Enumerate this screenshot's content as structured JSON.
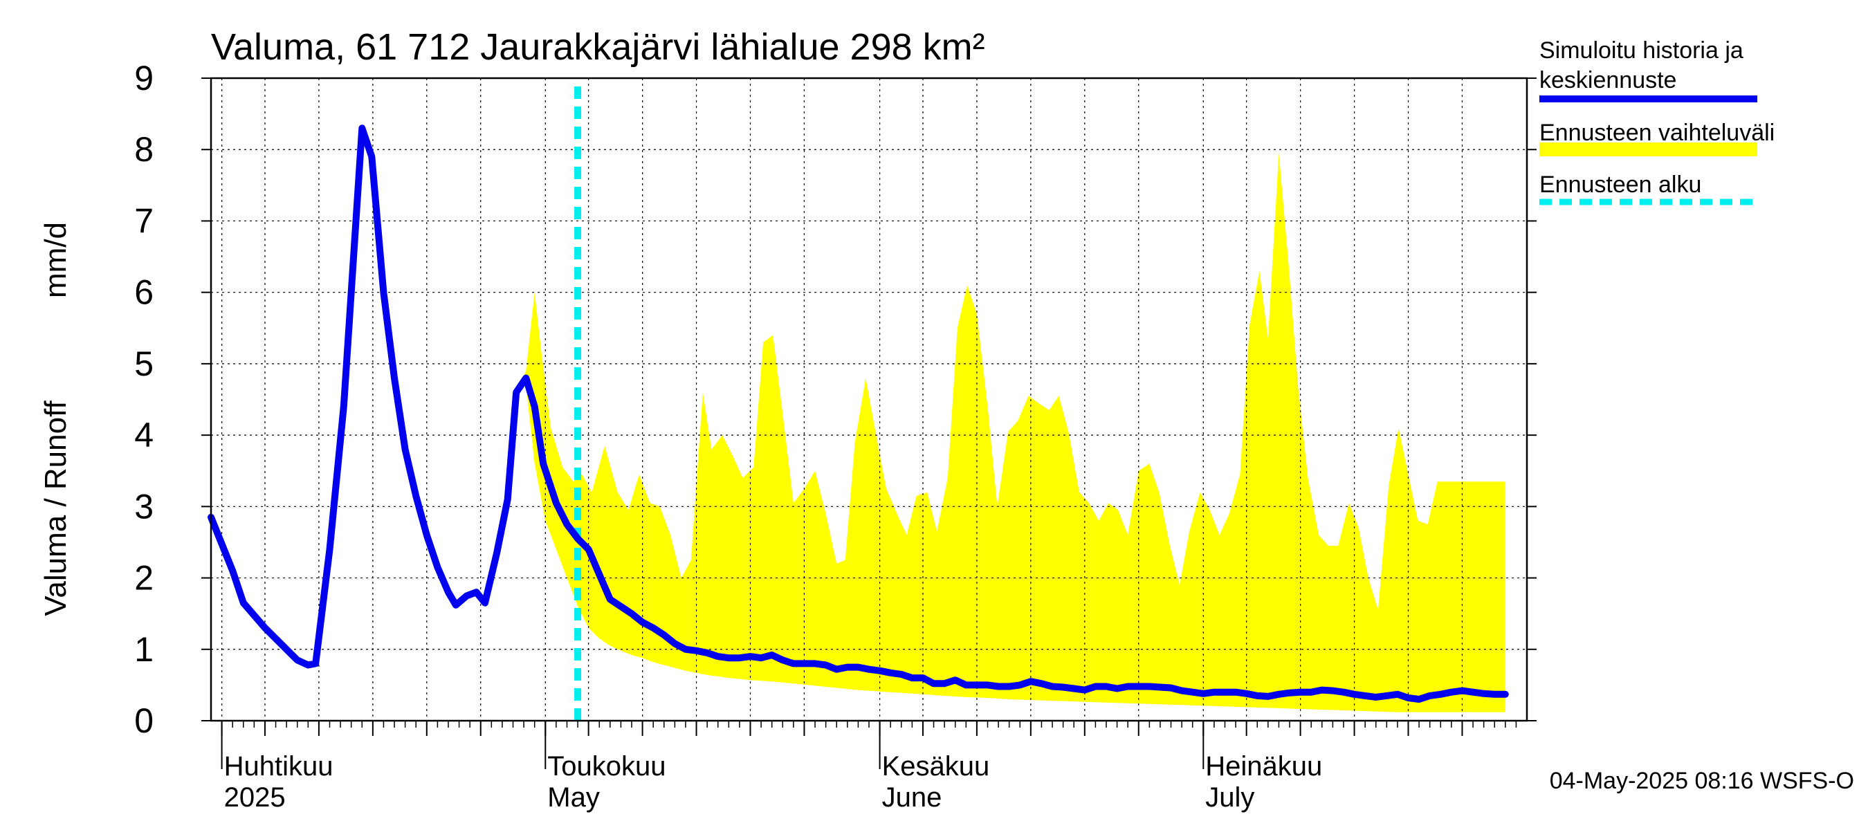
{
  "chart_data": {
    "type": "area",
    "title": "Valuma, 61 712 Jaurakkajärvi lähialue 298 km²",
    "ylabel_left": "Valuma / Runoff",
    "ylabel_right": "mm/d",
    "ylim": [
      0,
      9
    ],
    "yticks": [
      0,
      1,
      2,
      3,
      4,
      5,
      6,
      7,
      8,
      9
    ],
    "x_start": "2025-03-31",
    "x_end": "2025-07-31",
    "forecast_start": "2025-05-04",
    "months": [
      {
        "date": "2025-04-01",
        "label_fi": "Huhtikuu",
        "label_en": "2025"
      },
      {
        "date": "2025-05-01",
        "label_fi": "Toukokuu",
        "label_en": "May"
      },
      {
        "date": "2025-06-01",
        "label_fi": "Kesäkuu",
        "label_en": "June"
      },
      {
        "date": "2025-07-01",
        "label_fi": "Heinäkuu",
        "label_en": "July"
      }
    ],
    "legend": {
      "history": "Simuloitu historia ja keskiennuste",
      "range": "Ennusteen vaihteluväli",
      "start": "Ennusteen alku"
    },
    "footer": "04-May-2025 08:16 WSFS-O",
    "colors": {
      "history": "#0000ee",
      "range": "#ffff00",
      "start": "#00eeee",
      "grid": "#000000"
    },
    "series": [
      {
        "name": "Simuloitu historia ja keskiennuste",
        "points": [
          [
            0,
            2.85
          ],
          [
            2,
            2.1
          ],
          [
            3,
            1.65
          ],
          [
            5,
            1.3
          ],
          [
            7,
            1.0
          ],
          [
            8,
            0.85
          ],
          [
            9,
            0.78
          ],
          [
            9.7,
            0.8
          ],
          [
            11,
            2.4
          ],
          [
            12.3,
            4.4
          ],
          [
            14,
            8.3
          ],
          [
            14.9,
            7.9
          ],
          [
            16,
            6.0
          ],
          [
            17,
            4.8
          ],
          [
            18,
            3.8
          ],
          [
            19,
            3.15
          ],
          [
            20,
            2.6
          ],
          [
            21,
            2.15
          ],
          [
            22,
            1.8
          ],
          [
            22.7,
            1.62
          ],
          [
            23.7,
            1.75
          ],
          [
            24.6,
            1.8
          ],
          [
            25.4,
            1.65
          ],
          [
            26.5,
            2.35
          ],
          [
            27.5,
            3.1
          ],
          [
            28.3,
            4.6
          ],
          [
            29.2,
            4.8
          ],
          [
            30,
            4.4
          ],
          [
            30.8,
            3.6
          ],
          [
            32,
            3.05
          ],
          [
            33,
            2.75
          ],
          [
            34,
            2.55
          ],
          [
            35,
            2.4
          ],
          [
            36,
            2.05
          ],
          [
            37,
            1.7
          ],
          [
            38,
            1.6
          ],
          [
            39,
            1.5
          ],
          [
            40,
            1.38
          ],
          [
            41,
            1.3
          ],
          [
            42,
            1.2
          ],
          [
            43,
            1.08
          ],
          [
            44,
            1.0
          ],
          [
            45,
            0.98
          ],
          [
            46,
            0.95
          ],
          [
            47,
            0.9
          ],
          [
            48,
            0.88
          ],
          [
            49,
            0.88
          ],
          [
            50,
            0.9
          ],
          [
            51,
            0.88
          ],
          [
            52,
            0.92
          ],
          [
            53,
            0.85
          ],
          [
            54,
            0.8
          ],
          [
            55,
            0.8
          ],
          [
            56,
            0.8
          ],
          [
            57,
            0.78
          ],
          [
            58,
            0.72
          ],
          [
            59,
            0.75
          ],
          [
            60,
            0.75
          ],
          [
            61,
            0.72
          ],
          [
            62,
            0.7
          ],
          [
            63,
            0.67
          ],
          [
            64,
            0.65
          ],
          [
            65,
            0.6
          ],
          [
            66,
            0.6
          ],
          [
            67,
            0.52
          ],
          [
            68,
            0.52
          ],
          [
            69,
            0.57
          ],
          [
            70,
            0.5
          ],
          [
            71,
            0.5
          ],
          [
            72,
            0.5
          ],
          [
            73,
            0.48
          ],
          [
            74,
            0.48
          ],
          [
            75,
            0.5
          ],
          [
            76,
            0.55
          ],
          [
            77,
            0.52
          ],
          [
            78,
            0.48
          ],
          [
            79,
            0.47
          ],
          [
            80,
            0.45
          ],
          [
            81,
            0.43
          ],
          [
            82,
            0.48
          ],
          [
            83,
            0.48
          ],
          [
            84,
            0.45
          ],
          [
            85,
            0.48
          ],
          [
            86,
            0.48
          ],
          [
            87,
            0.48
          ],
          [
            88,
            0.47
          ],
          [
            89,
            0.46
          ],
          [
            90,
            0.42
          ],
          [
            91,
            0.4
          ],
          [
            92,
            0.38
          ],
          [
            93,
            0.4
          ],
          [
            94,
            0.4
          ],
          [
            95,
            0.4
          ],
          [
            96,
            0.38
          ],
          [
            97,
            0.35
          ],
          [
            98,
            0.34
          ],
          [
            99,
            0.37
          ],
          [
            100,
            0.39
          ],
          [
            101,
            0.4
          ],
          [
            102,
            0.4
          ],
          [
            103,
            0.43
          ],
          [
            104,
            0.42
          ],
          [
            105,
            0.4
          ],
          [
            106,
            0.37
          ],
          [
            107,
            0.35
          ],
          [
            108,
            0.33
          ],
          [
            109,
            0.35
          ],
          [
            110,
            0.37
          ],
          [
            111,
            0.32
          ],
          [
            112,
            0.3
          ],
          [
            113,
            0.35
          ],
          [
            114,
            0.37
          ],
          [
            115,
            0.4
          ],
          [
            116,
            0.42
          ],
          [
            117,
            0.4
          ],
          [
            118,
            0.38
          ],
          [
            119,
            0.37
          ],
          [
            120,
            0.37
          ]
        ]
      },
      {
        "name": "Ennusteen vaihteluväli",
        "upper": [
          [
            28.3,
            4.6
          ],
          [
            29.2,
            4.9
          ],
          [
            30,
            6.0
          ],
          [
            30.6,
            5.2
          ],
          [
            31.5,
            4.1
          ],
          [
            32.6,
            3.55
          ],
          [
            33.6,
            3.35
          ],
          [
            34.4,
            3.45
          ],
          [
            35.3,
            3.2
          ],
          [
            36.5,
            3.85
          ],
          [
            37.7,
            3.2
          ],
          [
            38.7,
            2.95
          ],
          [
            39.7,
            3.45
          ],
          [
            40.7,
            3.05
          ],
          [
            41.6,
            3.0
          ],
          [
            42.6,
            2.6
          ],
          [
            43.6,
            2.0
          ],
          [
            44.5,
            2.25
          ],
          [
            45.6,
            4.6
          ],
          [
            46.4,
            3.8
          ],
          [
            47.4,
            4.0
          ],
          [
            48.4,
            3.7
          ],
          [
            49.3,
            3.4
          ],
          [
            50.3,
            3.55
          ],
          [
            51.2,
            5.3
          ],
          [
            52.1,
            5.4
          ],
          [
            53,
            4.3
          ],
          [
            54,
            3.05
          ],
          [
            55,
            3.25
          ],
          [
            56,
            3.5
          ],
          [
            57,
            2.9
          ],
          [
            58,
            2.2
          ],
          [
            58.8,
            2.25
          ],
          [
            59.7,
            3.9
          ],
          [
            60.7,
            4.8
          ],
          [
            61.6,
            4.05
          ],
          [
            62.6,
            3.25
          ],
          [
            63.6,
            2.9
          ],
          [
            64.5,
            2.6
          ],
          [
            65.4,
            3.15
          ],
          [
            66.4,
            3.2
          ],
          [
            67.3,
            2.65
          ],
          [
            68.3,
            3.4
          ],
          [
            69.2,
            5.5
          ],
          [
            70.1,
            6.1
          ],
          [
            71,
            5.7
          ],
          [
            72,
            4.4
          ],
          [
            72.9,
            3.0
          ],
          [
            73.9,
            4.05
          ],
          [
            74.8,
            4.2
          ],
          [
            75.8,
            4.55
          ],
          [
            76.7,
            4.45
          ],
          [
            77.7,
            4.35
          ],
          [
            78.6,
            4.55
          ],
          [
            79.5,
            4.05
          ],
          [
            80.5,
            3.2
          ],
          [
            81.4,
            3.05
          ],
          [
            82.3,
            2.8
          ],
          [
            83.2,
            3.05
          ],
          [
            84.1,
            2.95
          ],
          [
            85,
            2.6
          ],
          [
            86,
            3.5
          ],
          [
            87,
            3.6
          ],
          [
            87.9,
            3.2
          ],
          [
            88.9,
            2.45
          ],
          [
            89.8,
            1.9
          ],
          [
            90.7,
            2.65
          ],
          [
            91.7,
            3.2
          ],
          [
            92.6,
            2.95
          ],
          [
            93.5,
            2.6
          ],
          [
            94.4,
            2.9
          ],
          [
            95.4,
            3.45
          ],
          [
            96.3,
            5.55
          ],
          [
            97.2,
            6.3
          ],
          [
            98,
            5.35
          ],
          [
            99,
            7.95
          ],
          [
            99.9,
            6.4
          ],
          [
            100.8,
            4.65
          ],
          [
            101.7,
            3.4
          ],
          [
            102.7,
            2.6
          ],
          [
            103.6,
            2.45
          ],
          [
            104.5,
            2.45
          ],
          [
            105.5,
            3.05
          ],
          [
            106.4,
            2.7
          ],
          [
            107.3,
            2.0
          ],
          [
            108.2,
            1.55
          ],
          [
            109.2,
            3.3
          ],
          [
            110.1,
            4.1
          ],
          [
            111,
            3.45
          ],
          [
            111.9,
            2.8
          ],
          [
            112.8,
            2.75
          ],
          [
            113.7,
            3.35
          ],
          [
            120,
            3.35
          ]
        ],
        "lower": [
          [
            28.3,
            4.6
          ],
          [
            29.2,
            4.7
          ],
          [
            30,
            3.6
          ],
          [
            31,
            2.8
          ],
          [
            32,
            2.4
          ],
          [
            33,
            2.0
          ],
          [
            34,
            1.6
          ],
          [
            35,
            1.3
          ],
          [
            36,
            1.15
          ],
          [
            37,
            1.05
          ],
          [
            38,
            0.98
          ],
          [
            39,
            0.92
          ],
          [
            40,
            0.88
          ],
          [
            41,
            0.82
          ],
          [
            42,
            0.78
          ],
          [
            43,
            0.74
          ],
          [
            44,
            0.7
          ],
          [
            45,
            0.67
          ],
          [
            46,
            0.64
          ],
          [
            47,
            0.62
          ],
          [
            48,
            0.6
          ],
          [
            50,
            0.57
          ],
          [
            52,
            0.55
          ],
          [
            54,
            0.52
          ],
          [
            56,
            0.49
          ],
          [
            58,
            0.46
          ],
          [
            60,
            0.43
          ],
          [
            62,
            0.41
          ],
          [
            64,
            0.39
          ],
          [
            66,
            0.37
          ],
          [
            68,
            0.35
          ],
          [
            70,
            0.33
          ],
          [
            72,
            0.32
          ],
          [
            74,
            0.3
          ],
          [
            76,
            0.29
          ],
          [
            78,
            0.28
          ],
          [
            80,
            0.27
          ],
          [
            82,
            0.26
          ],
          [
            84,
            0.25
          ],
          [
            86,
            0.24
          ],
          [
            88,
            0.23
          ],
          [
            90,
            0.22
          ],
          [
            92,
            0.21
          ],
          [
            94,
            0.2
          ],
          [
            96,
            0.19
          ],
          [
            98,
            0.18
          ],
          [
            100,
            0.17
          ],
          [
            102,
            0.16
          ],
          [
            104,
            0.15
          ],
          [
            106,
            0.14
          ],
          [
            108,
            0.13
          ],
          [
            110,
            0.12
          ],
          [
            112,
            0.12
          ],
          [
            114,
            0.12
          ],
          [
            116,
            0.12
          ],
          [
            118,
            0.12
          ],
          [
            120,
            0.12
          ]
        ]
      }
    ]
  }
}
